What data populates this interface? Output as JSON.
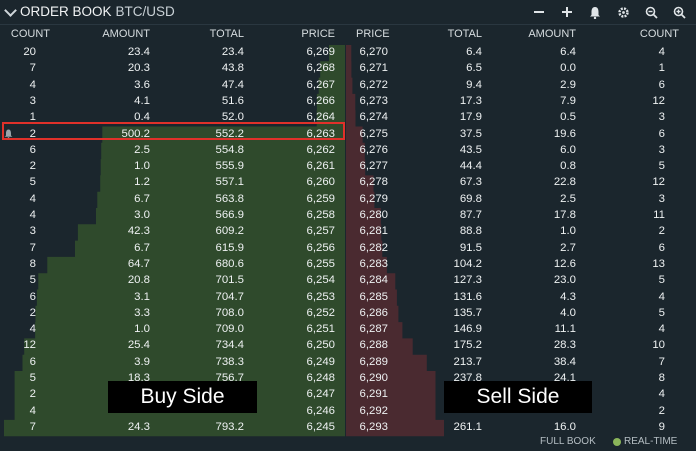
{
  "header": {
    "title": "ORDER BOOK",
    "pair": "BTC/USD",
    "icons": [
      "minus-icon",
      "plus-icon",
      "bell-icon",
      "gear-icon",
      "zoom-out-icon",
      "zoom-in-icon"
    ]
  },
  "columns": {
    "buy": [
      "COUNT",
      "AMOUNT",
      "TOTAL",
      "PRICE"
    ],
    "sell": [
      "PRICE",
      "TOTAL",
      "AMOUNT",
      "COUNT"
    ]
  },
  "rows": [
    {
      "bc": "20",
      "ba": "23.4",
      "bt": "23.4",
      "bp": "6,269",
      "sp": "6,270",
      "st": "6.4",
      "sa": "6.4",
      "sc": "4"
    },
    {
      "bc": "7",
      "ba": "20.3",
      "bt": "43.8",
      "bp": "6,268",
      "sp": "6,271",
      "st": "6.5",
      "sa": "0.0",
      "sc": "1"
    },
    {
      "bc": "4",
      "ba": "3.6",
      "bt": "47.4",
      "bp": "6,267",
      "sp": "6,272",
      "st": "9.4",
      "sa": "2.9",
      "sc": "6"
    },
    {
      "bc": "3",
      "ba": "4.1",
      "bt": "51.6",
      "bp": "6,266",
      "sp": "6,273",
      "st": "17.3",
      "sa": "7.9",
      "sc": "12"
    },
    {
      "bc": "1",
      "ba": "0.4",
      "bt": "52.0",
      "bp": "6,264",
      "sp": "6,274",
      "st": "17.9",
      "sa": "0.5",
      "sc": "3"
    },
    {
      "bc": "2",
      "ba": "500.2",
      "bt": "552.2",
      "bp": "6,263",
      "sp": "6,275",
      "st": "37.5",
      "sa": "19.6",
      "sc": "6"
    },
    {
      "bc": "6",
      "ba": "2.5",
      "bt": "554.8",
      "bp": "6,262",
      "sp": "6,276",
      "st": "43.5",
      "sa": "6.0",
      "sc": "3"
    },
    {
      "bc": "2",
      "ba": "1.0",
      "bt": "555.9",
      "bp": "6,261",
      "sp": "6,277",
      "st": "44.4",
      "sa": "0.8",
      "sc": "5"
    },
    {
      "bc": "5",
      "ba": "1.2",
      "bt": "557.1",
      "bp": "6,260",
      "sp": "6,278",
      "st": "67.3",
      "sa": "22.8",
      "sc": "12"
    },
    {
      "bc": "4",
      "ba": "6.7",
      "bt": "563.8",
      "bp": "6,259",
      "sp": "6,279",
      "st": "69.8",
      "sa": "2.5",
      "sc": "3"
    },
    {
      "bc": "4",
      "ba": "3.0",
      "bt": "566.9",
      "bp": "6,258",
      "sp": "6,280",
      "st": "87.7",
      "sa": "17.8",
      "sc": "11"
    },
    {
      "bc": "3",
      "ba": "42.3",
      "bt": "609.2",
      "bp": "6,257",
      "sp": "6,281",
      "st": "88.8",
      "sa": "1.0",
      "sc": "2"
    },
    {
      "bc": "7",
      "ba": "6.7",
      "bt": "615.9",
      "bp": "6,256",
      "sp": "6,282",
      "st": "91.5",
      "sa": "2.7",
      "sc": "6"
    },
    {
      "bc": "8",
      "ba": "64.7",
      "bt": "680.6",
      "bp": "6,255",
      "sp": "6,283",
      "st": "104.2",
      "sa": "12.6",
      "sc": "13"
    },
    {
      "bc": "5",
      "ba": "20.8",
      "bt": "701.5",
      "bp": "6,254",
      "sp": "6,284",
      "st": "127.3",
      "sa": "23.0",
      "sc": "5"
    },
    {
      "bc": "6",
      "ba": "3.1",
      "bt": "704.7",
      "bp": "6,253",
      "sp": "6,285",
      "st": "131.6",
      "sa": "4.3",
      "sc": "4"
    },
    {
      "bc": "2",
      "ba": "3.3",
      "bt": "708.0",
      "bp": "6,252",
      "sp": "6,286",
      "st": "135.7",
      "sa": "4.0",
      "sc": "5"
    },
    {
      "bc": "4",
      "ba": "1.0",
      "bt": "709.0",
      "bp": "6,251",
      "sp": "6,287",
      "st": "146.9",
      "sa": "11.1",
      "sc": "4"
    },
    {
      "bc": "12",
      "ba": "25.4",
      "bt": "734.4",
      "bp": "6,250",
      "sp": "6,288",
      "st": "175.2",
      "sa": "28.3",
      "sc": "10"
    },
    {
      "bc": "6",
      "ba": "3.9",
      "bt": "738.3",
      "bp": "6,249",
      "sp": "6,289",
      "st": "213.7",
      "sa": "38.4",
      "sc": "7"
    },
    {
      "bc": "5",
      "ba": "18.3",
      "bt": "756.7",
      "bp": "6,248",
      "sp": "6,290",
      "st": "237.8",
      "sa": "24.1",
      "sc": "8"
    },
    {
      "bc": "2",
      "ba": "",
      "bt": "",
      "bp": "6,247",
      "sp": "6,291",
      "st": "",
      "sa": "",
      "sc": "4"
    },
    {
      "bc": "4",
      "ba": "",
      "bt": "",
      "bp": "6,246",
      "sp": "6,292",
      "st": "",
      "sa": "",
      "sc": "2"
    },
    {
      "bc": "7",
      "ba": "24.3",
      "bt": "793.2",
      "bp": "6,245",
      "sp": "6,293",
      "st": "261.1",
      "sa": "16.0",
      "sc": "9"
    }
  ],
  "alert_row_index": 5,
  "annotations": {
    "buy": "Buy Side",
    "sell": "Sell Side"
  },
  "footer": {
    "full_book": "FULL BOOK",
    "realtime": "REAL-TIME"
  },
  "colors": {
    "buy_depth": "#2f4a2c",
    "sell_depth": "#4a2a30",
    "highlight": "#e0312a",
    "realtime_dot": "#8ab55a"
  }
}
